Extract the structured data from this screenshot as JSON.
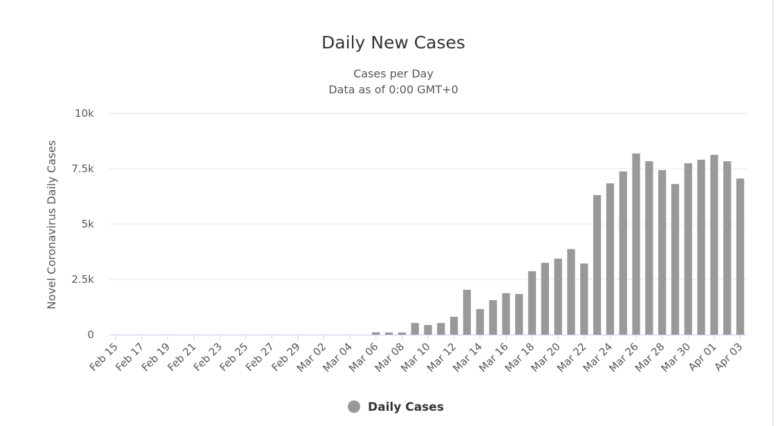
{
  "chart_data": {
    "type": "bar",
    "title": "Daily New Cases",
    "subtitle": [
      "Cases per Day",
      "Data as of 0:00 GMT+0"
    ],
    "y_label": "Novel Coronavirus Daily Cases",
    "categories": [
      "Feb 15",
      null,
      "Feb 17",
      null,
      "Feb 19",
      null,
      "Feb 21",
      null,
      "Feb 23",
      null,
      "Feb 25",
      null,
      "Feb 27",
      null,
      "Feb 29",
      null,
      "Mar 02",
      null,
      "Mar 04",
      null,
      "Mar 06",
      null,
      "Mar 08",
      null,
      "Mar 10",
      null,
      "Mar 12",
      null,
      "Mar 14",
      null,
      "Mar 16",
      null,
      "Mar 18",
      null,
      "Mar 20",
      null,
      "Mar 22",
      null,
      "Mar 24",
      null,
      "Mar 26",
      null,
      "Mar 28",
      null,
      "Mar 30",
      null,
      "Apr 01",
      null,
      "Apr 03"
    ],
    "series": [
      {
        "name": "Daily Cases",
        "color": "#999999",
        "values": [
          0,
          0,
          0,
          0,
          0,
          0,
          0,
          0,
          0,
          0,
          0,
          0,
          0,
          0,
          0,
          0,
          0,
          0,
          0,
          0,
          110,
          100,
          100,
          530,
          440,
          530,
          810,
          2030,
          1160,
          1560,
          1880,
          1840,
          2870,
          3250,
          3440,
          3870,
          3220,
          6310,
          6840,
          7380,
          8190,
          7840,
          7440,
          6810,
          7750,
          7910,
          8130,
          7840,
          7060
        ]
      }
    ],
    "ylim": [
      0,
      10000
    ],
    "yticks": [
      0,
      {
        "value": 2500,
        "label": "2.5k"
      },
      {
        "value": 5000,
        "label": "5k"
      },
      {
        "value": 7500,
        "label": "7.5k"
      },
      {
        "value": 10000,
        "label": "10k"
      }
    ],
    "grid": true
  }
}
